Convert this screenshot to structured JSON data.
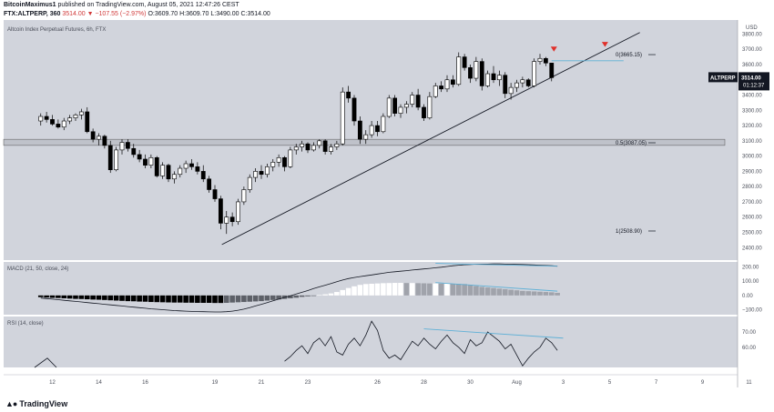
{
  "header": {
    "publisher": "BitcoinMaximus1",
    "published_text": "published on TradingView.com, August 05, 2021 12:47:26 CEST",
    "symbol": "FTX:ALTPERP, 360",
    "ohlc_text": "3514.00 ▼ −107.55 (−2.97%)",
    "ohlc_parts": {
      "change": "−107.55 (−2.97%)",
      "o": "O:3609.70",
      "h": "H:3609.70",
      "l": "L:3490.00",
      "c": "C:3514.00"
    }
  },
  "chart_title": "Altcoin Index Perpetual Futures, 6h, FTX",
  "brand": "TradingView",
  "colors": {
    "background": "#d1d4dc",
    "candle_up": "#ffffff",
    "candle_down": "#000000",
    "wick": "#000000",
    "marker": "#e0302a",
    "divergence": "#5fb0d6",
    "price_tag": "#131722"
  },
  "price_tag": {
    "symbol": "ALTPERP",
    "price": "3514.00",
    "countdown": "01:12:37"
  },
  "chart_data": [
    {
      "type": "candlestick",
      "title": "Altcoin Index Perpetual Futures, 6h, FTX",
      "yunit": "USD",
      "ylim": [
        2330,
        3880
      ],
      "y_ticks": [
        "3800.00",
        "3700.00",
        "3600.00",
        "3500.00",
        "3400.00",
        "3300.00",
        "3200.00",
        "3100.00",
        "3000.00",
        "2900.00",
        "2800.00",
        "2700.00",
        "2600.00",
        "2500.00",
        "2400.00"
      ],
      "x_ticks": [
        "12",
        "14",
        "16",
        "19",
        "21",
        "23",
        "26",
        "28",
        "30",
        "Aug",
        "3",
        "5",
        "7",
        "9",
        "11"
      ],
      "fib_levels": [
        {
          "label": "0(3665.15)",
          "value": 3665.15
        },
        {
          "label": "0.5(3087.05)",
          "value": 3087.05
        },
        {
          "label": "1(2508.90)",
          "value": 2508.9
        }
      ],
      "support_zone": [
        3070,
        3110
      ],
      "trendline": [
        {
          "day": 19.3,
          "price": 2420
        },
        {
          "day": 37.3,
          "price": 3810
        }
      ],
      "resistance_line": [
        {
          "day": 33.5,
          "price": 3625
        },
        {
          "day": 36.6,
          "price": 3625
        }
      ],
      "markers": [
        {
          "day": 33.6,
          "price": 3700
        },
        {
          "day": 35.8,
          "price": 3730
        }
      ],
      "candles": [
        {
          "o": 3230,
          "h": 3280,
          "l": 3200,
          "c": 3260
        },
        {
          "o": 3260,
          "h": 3290,
          "l": 3220,
          "c": 3240
        },
        {
          "o": 3240,
          "h": 3270,
          "l": 3200,
          "c": 3210
        },
        {
          "o": 3210,
          "h": 3240,
          "l": 3180,
          "c": 3190
        },
        {
          "o": 3190,
          "h": 3250,
          "l": 3170,
          "c": 3230
        },
        {
          "o": 3230,
          "h": 3270,
          "l": 3210,
          "c": 3250
        },
        {
          "o": 3250,
          "h": 3280,
          "l": 3230,
          "c": 3270
        },
        {
          "o": 3270,
          "h": 3310,
          "l": 3240,
          "c": 3290
        },
        {
          "o": 3290,
          "h": 3320,
          "l": 3150,
          "c": 3160
        },
        {
          "o": 3160,
          "h": 3180,
          "l": 3090,
          "c": 3110
        },
        {
          "o": 3110,
          "h": 3150,
          "l": 3070,
          "c": 3130
        },
        {
          "o": 3130,
          "h": 3140,
          "l": 3050,
          "c": 3070
        },
        {
          "o": 3070,
          "h": 3100,
          "l": 2890,
          "c": 2910
        },
        {
          "o": 2910,
          "h": 3060,
          "l": 2900,
          "c": 3040
        },
        {
          "o": 3040,
          "h": 3110,
          "l": 3010,
          "c": 3090
        },
        {
          "o": 3090,
          "h": 3110,
          "l": 3030,
          "c": 3050
        },
        {
          "o": 3050,
          "h": 3080,
          "l": 2990,
          "c": 3010
        },
        {
          "o": 3010,
          "h": 3040,
          "l": 2960,
          "c": 2980
        },
        {
          "o": 2980,
          "h": 3010,
          "l": 2920,
          "c": 2940
        },
        {
          "o": 2940,
          "h": 3010,
          "l": 2920,
          "c": 2990
        },
        {
          "o": 2990,
          "h": 3000,
          "l": 2860,
          "c": 2870
        },
        {
          "o": 2870,
          "h": 2960,
          "l": 2850,
          "c": 2940
        },
        {
          "o": 2940,
          "h": 2950,
          "l": 2830,
          "c": 2850
        },
        {
          "o": 2850,
          "h": 2900,
          "l": 2820,
          "c": 2880
        },
        {
          "o": 2880,
          "h": 2940,
          "l": 2860,
          "c": 2920
        },
        {
          "o": 2920,
          "h": 2970,
          "l": 2890,
          "c": 2950
        },
        {
          "o": 2950,
          "h": 2980,
          "l": 2910,
          "c": 2930
        },
        {
          "o": 2930,
          "h": 2960,
          "l": 2880,
          "c": 2900
        },
        {
          "o": 2900,
          "h": 2940,
          "l": 2830,
          "c": 2850
        },
        {
          "o": 2850,
          "h": 2870,
          "l": 2760,
          "c": 2780
        },
        {
          "o": 2780,
          "h": 2810,
          "l": 2700,
          "c": 2720
        },
        {
          "o": 2720,
          "h": 2740,
          "l": 2520,
          "c": 2560
        },
        {
          "o": 2560,
          "h": 2640,
          "l": 2490,
          "c": 2600
        },
        {
          "o": 2600,
          "h": 2630,
          "l": 2540,
          "c": 2570
        },
        {
          "o": 2570,
          "h": 2720,
          "l": 2550,
          "c": 2700
        },
        {
          "o": 2700,
          "h": 2800,
          "l": 2680,
          "c": 2780
        },
        {
          "o": 2780,
          "h": 2880,
          "l": 2760,
          "c": 2860
        },
        {
          "o": 2860,
          "h": 2920,
          "l": 2830,
          "c": 2900
        },
        {
          "o": 2900,
          "h": 2940,
          "l": 2850,
          "c": 2880
        },
        {
          "o": 2880,
          "h": 2950,
          "l": 2860,
          "c": 2930
        },
        {
          "o": 2930,
          "h": 2980,
          "l": 2900,
          "c": 2960
        },
        {
          "o": 2960,
          "h": 3010,
          "l": 2930,
          "c": 2990
        },
        {
          "o": 2990,
          "h": 3000,
          "l": 2900,
          "c": 2930
        },
        {
          "o": 2930,
          "h": 3060,
          "l": 2920,
          "c": 3040
        },
        {
          "o": 3040,
          "h": 3080,
          "l": 3010,
          "c": 3060
        },
        {
          "o": 3060,
          "h": 3100,
          "l": 3030,
          "c": 3080
        },
        {
          "o": 3080,
          "h": 3090,
          "l": 3020,
          "c": 3040
        },
        {
          "o": 3040,
          "h": 3090,
          "l": 3030,
          "c": 3070
        },
        {
          "o": 3070,
          "h": 3110,
          "l": 3050,
          "c": 3100
        },
        {
          "o": 3100,
          "h": 3110,
          "l": 3010,
          "c": 3030
        },
        {
          "o": 3030,
          "h": 3080,
          "l": 3010,
          "c": 3060
        },
        {
          "o": 3060,
          "h": 3100,
          "l": 3040,
          "c": 3080
        },
        {
          "o": 3080,
          "h": 3450,
          "l": 3070,
          "c": 3420
        },
        {
          "o": 3420,
          "h": 3460,
          "l": 3350,
          "c": 3380
        },
        {
          "o": 3380,
          "h": 3400,
          "l": 3200,
          "c": 3230
        },
        {
          "o": 3230,
          "h": 3260,
          "l": 3080,
          "c": 3110
        },
        {
          "o": 3110,
          "h": 3170,
          "l": 3080,
          "c": 3140
        },
        {
          "o": 3140,
          "h": 3230,
          "l": 3120,
          "c": 3200
        },
        {
          "o": 3200,
          "h": 3230,
          "l": 3130,
          "c": 3160
        },
        {
          "o": 3160,
          "h": 3280,
          "l": 3150,
          "c": 3260
        },
        {
          "o": 3260,
          "h": 3400,
          "l": 3250,
          "c": 3380
        },
        {
          "o": 3380,
          "h": 3400,
          "l": 3260,
          "c": 3280
        },
        {
          "o": 3280,
          "h": 3340,
          "l": 3250,
          "c": 3320
        },
        {
          "o": 3320,
          "h": 3360,
          "l": 3280,
          "c": 3340
        },
        {
          "o": 3340,
          "h": 3420,
          "l": 3320,
          "c": 3400
        },
        {
          "o": 3400,
          "h": 3440,
          "l": 3300,
          "c": 3320
        },
        {
          "o": 3320,
          "h": 3340,
          "l": 3230,
          "c": 3250
        },
        {
          "o": 3250,
          "h": 3420,
          "l": 3240,
          "c": 3390
        },
        {
          "o": 3390,
          "h": 3480,
          "l": 3380,
          "c": 3460
        },
        {
          "o": 3460,
          "h": 3490,
          "l": 3420,
          "c": 3440
        },
        {
          "o": 3440,
          "h": 3530,
          "l": 3420,
          "c": 3500
        },
        {
          "o": 3500,
          "h": 3530,
          "l": 3450,
          "c": 3470
        },
        {
          "o": 3470,
          "h": 3680,
          "l": 3460,
          "c": 3650
        },
        {
          "o": 3650,
          "h": 3670,
          "l": 3560,
          "c": 3580
        },
        {
          "o": 3580,
          "h": 3600,
          "l": 3480,
          "c": 3510
        },
        {
          "o": 3510,
          "h": 3650,
          "l": 3490,
          "c": 3620
        },
        {
          "o": 3620,
          "h": 3640,
          "l": 3430,
          "c": 3460
        },
        {
          "o": 3460,
          "h": 3560,
          "l": 3450,
          "c": 3540
        },
        {
          "o": 3540,
          "h": 3590,
          "l": 3480,
          "c": 3500
        },
        {
          "o": 3500,
          "h": 3560,
          "l": 3460,
          "c": 3530
        },
        {
          "o": 3530,
          "h": 3550,
          "l": 3380,
          "c": 3410
        },
        {
          "o": 3410,
          "h": 3480,
          "l": 3370,
          "c": 3450
        },
        {
          "o": 3450,
          "h": 3500,
          "l": 3420,
          "c": 3480
        },
        {
          "o": 3480,
          "h": 3520,
          "l": 3450,
          "c": 3500
        },
        {
          "o": 3500,
          "h": 3510,
          "l": 3450,
          "c": 3460
        },
        {
          "o": 3460,
          "h": 3640,
          "l": 3450,
          "c": 3620
        },
        {
          "o": 3620,
          "h": 3670,
          "l": 3600,
          "c": 3640
        },
        {
          "o": 3640,
          "h": 3650,
          "l": 3590,
          "c": 3610
        },
        {
          "o": 3609.7,
          "h": 3609.7,
          "l": 3490,
          "c": 3514
        }
      ]
    },
    {
      "type": "macd",
      "title": "MACD (21, 50, close, 24)",
      "y_ticks": [
        "200.00",
        "100.00",
        "0.00",
        "−100.00"
      ],
      "ylim": [
        -135,
        235
      ],
      "histogram": [
        -12,
        -15,
        -17,
        -18,
        -20,
        -22,
        -24,
        -25,
        -27,
        -29,
        -30,
        -32,
        -34,
        -36,
        -38,
        -40,
        -41,
        -43,
        -44,
        -46,
        -47,
        -48,
        -49,
        -50,
        -50,
        -51,
        -51,
        -52,
        -52,
        -52,
        -53,
        -53,
        -52,
        -50,
        -48,
        -46,
        -44,
        -42,
        -40,
        -36,
        -32,
        -28,
        -24,
        -20,
        -16,
        -10,
        -6,
        -2,
        3,
        8,
        14,
        24,
        38,
        52,
        64,
        74,
        80,
        82,
        84,
        86,
        87,
        88,
        88,
        87,
        87,
        86,
        85,
        84,
        84,
        83,
        83,
        82,
        81,
        80,
        74,
        66,
        60,
        56,
        52,
        48,
        44,
        40,
        36,
        32,
        30,
        28,
        26,
        24,
        22,
        18
      ],
      "macd_line": [
        -18,
        -22,
        -26,
        -30,
        -34,
        -38,
        -42,
        -46,
        -50,
        -54,
        -58,
        -62,
        -66,
        -70,
        -74,
        -78,
        -82,
        -86,
        -90,
        -94,
        -97,
        -100,
        -103,
        -106,
        -108,
        -110,
        -112,
        -113,
        -114,
        -115,
        -116,
        -116,
        -114,
        -110,
        -104,
        -96,
        -86,
        -74,
        -62,
        -50,
        -38,
        -26,
        -14,
        -2,
        10,
        22,
        34,
        48,
        60,
        72,
        84,
        96,
        108,
        118,
        126,
        132,
        138,
        144,
        150,
        156,
        162,
        166,
        170,
        174,
        178,
        182,
        186,
        190,
        194,
        198,
        203,
        208,
        212,
        215,
        217,
        219,
        220,
        220,
        221,
        221,
        220,
        219,
        218,
        217,
        216,
        214,
        212,
        210,
        208,
        205
      ],
      "divergence_lines": [
        [
          {
            "i": 68,
            "v": 225
          },
          {
            "i": 89,
            "v": 205
          }
        ],
        [
          {
            "i": 68,
            "v": 90
          },
          {
            "i": 89,
            "v": 30
          }
        ]
      ]
    },
    {
      "type": "rsi",
      "title": "RSI (14, close)",
      "y_ticks": [
        "70.00",
        "60.00"
      ],
      "ylim": [
        47,
        80
      ],
      "values": [
        null,
        null,
        null,
        null,
        null,
        null,
        null,
        null,
        null,
        null,
        null,
        null,
        null,
        null,
        null,
        null,
        null,
        null,
        null,
        null,
        null,
        null,
        null,
        null,
        null,
        null,
        null,
        null,
        null,
        null,
        null,
        null,
        null,
        null,
        null,
        null,
        null,
        null,
        null,
        null,
        null,
        null,
        51,
        54,
        58,
        61,
        56,
        63,
        66,
        61,
        67,
        57,
        55,
        62,
        66,
        61,
        68,
        77,
        71,
        58,
        53,
        55,
        52,
        58,
        64,
        61,
        66,
        62,
        59,
        64,
        68,
        63,
        60,
        56,
        65,
        61,
        63,
        70,
        67,
        64,
        59,
        62,
        55,
        48,
        53,
        57,
        60,
        66,
        63,
        58
      ],
      "divergence_line": [
        {
          "i": 66,
          "v": 72
        },
        {
          "i": 90,
          "v": 66
        }
      ]
    }
  ]
}
